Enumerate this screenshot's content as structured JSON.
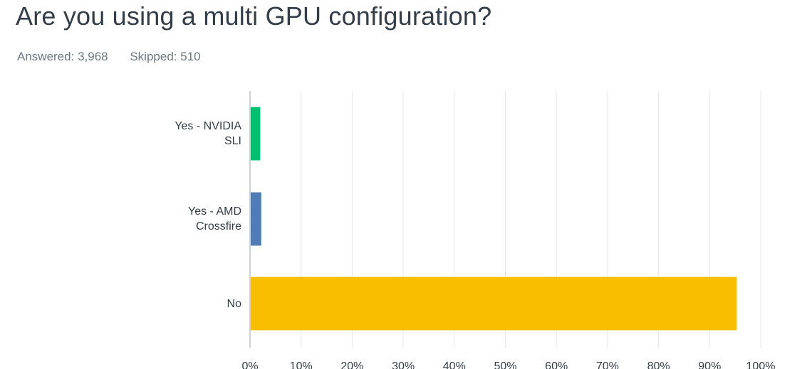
{
  "header": {
    "title": "Are you using a multi GPU configuration?",
    "answered_label": "Answered:",
    "answered_value": "3,968",
    "skipped_label": "Skipped:",
    "skipped_value": "510"
  },
  "chart_data": {
    "type": "bar",
    "orientation": "horizontal",
    "title": "Are you using a multi GPU configuration?",
    "categories": [
      "Yes - NVIDIA SLI",
      "Yes - AMD Crossfire",
      "No"
    ],
    "category_lines": [
      [
        "Yes - NVIDIA",
        "SLI"
      ],
      [
        "Yes - AMD",
        "Crossfire"
      ],
      [
        "No"
      ]
    ],
    "values": [
      2.0,
      2.2,
      95.3
    ],
    "colors": [
      "#00bf6f",
      "#507cb6",
      "#f9be00"
    ],
    "xlim": [
      0,
      100
    ],
    "xticks": [
      0,
      10,
      20,
      30,
      40,
      50,
      60,
      70,
      80,
      90,
      100
    ],
    "xtick_labels": [
      "0%",
      "10%",
      "20%",
      "30%",
      "40%",
      "50%",
      "60%",
      "70%",
      "80%",
      "90%",
      "100%"
    ],
    "grid": true,
    "legend": "none"
  }
}
